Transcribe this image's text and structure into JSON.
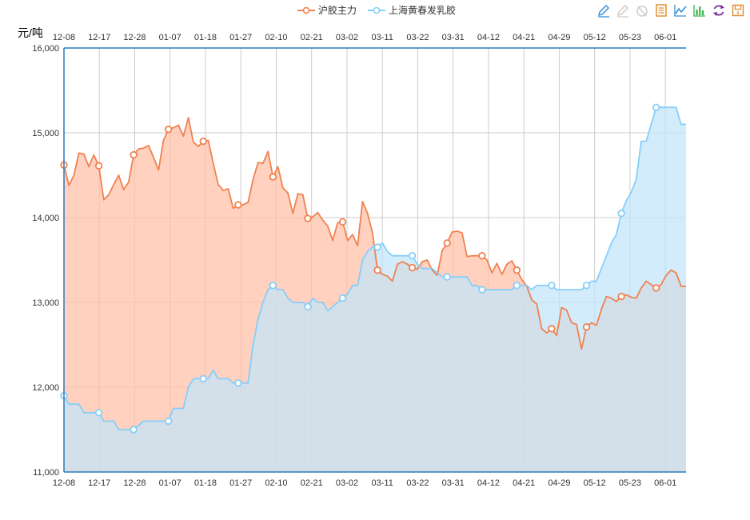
{
  "legend": {
    "items": [
      {
        "name": "沪胶主力",
        "color": "#F08150"
      },
      {
        "name": "上海黄春发乳胶",
        "color": "#87CEFA"
      }
    ]
  },
  "toolbox": {
    "icons": [
      "pen-icon",
      "eraser-icon",
      "clear-icon",
      "data-view-icon",
      "line-chart-icon",
      "bar-chart-icon",
      "refresh-icon",
      "save-icon"
    ]
  },
  "chart_data": {
    "type": "area",
    "ylabel": "元/吨",
    "ylim": [
      11000,
      16000
    ],
    "yticks": [
      "11,000",
      "12,000",
      "13,000",
      "14,000",
      "15,000",
      "16,000"
    ],
    "xtick_labels": [
      "12-08",
      "12-17",
      "12-28",
      "01-07",
      "01-18",
      "01-27",
      "02-10",
      "02-21",
      "03-02",
      "03-11",
      "03-22",
      "03-31",
      "04-12",
      "04-21",
      "04-29",
      "05-12",
      "05-23",
      "06-01"
    ],
    "grid": true,
    "series": [
      {
        "name": "沪胶主力",
        "color": "#F08150",
        "fill": "#FFBFA5",
        "values": [
          14620,
          14380,
          14500,
          14760,
          14750,
          14600,
          14740,
          14610,
          14210,
          14270,
          14390,
          14500,
          14330,
          14420,
          14740,
          14810,
          14820,
          14850,
          14710,
          14560,
          14910,
          15040,
          15060,
          15090,
          14960,
          15180,
          14890,
          14840,
          14900,
          14910,
          14640,
          14390,
          14320,
          14340,
          14110,
          14150,
          14150,
          14180,
          14450,
          14650,
          14640,
          14780,
          14480,
          14600,
          14350,
          14290,
          14050,
          14280,
          14270,
          13990,
          14010,
          14060,
          13970,
          13900,
          13730,
          13940,
          13950,
          13730,
          13800,
          13670,
          14190,
          14050,
          13820,
          13380,
          13330,
          13310,
          13250,
          13450,
          13480,
          13450,
          13410,
          13390,
          13480,
          13500,
          13380,
          13320,
          13610,
          13700,
          13830,
          13840,
          13820,
          13540,
          13550,
          13550,
          13550,
          13500,
          13350,
          13460,
          13330,
          13450,
          13490,
          13380,
          13270,
          13190,
          13030,
          12980,
          12690,
          12640,
          12690,
          12610,
          12940,
          12910,
          12760,
          12740,
          12450,
          12710,
          12760,
          12730,
          12920,
          13070,
          13050,
          13010,
          13070,
          13090,
          13060,
          13050,
          13170,
          13250,
          13210,
          13170,
          13210,
          13320,
          13380,
          13350,
          13190,
          13190
        ]
      },
      {
        "name": "上海黄春发乳胶",
        "color": "#87CEFA",
        "fill": "#C2E5FA",
        "values": [
          11900,
          11800,
          11800,
          11800,
          11700,
          11700,
          11700,
          11700,
          11600,
          11600,
          11600,
          11500,
          11500,
          11500,
          11500,
          11550,
          11600,
          11600,
          11600,
          11600,
          11600,
          11600,
          11750,
          11750,
          11750,
          12000,
          12100,
          12100,
          12100,
          12100,
          12200,
          12100,
          12100,
          12100,
          12050,
          12050,
          12050,
          12050,
          12500,
          12800,
          13000,
          13150,
          13200,
          13150,
          13150,
          13050,
          13000,
          13000,
          13000,
          12950,
          13050,
          13000,
          13000,
          12900,
          12950,
          13000,
          13050,
          13100,
          13200,
          13200,
          13500,
          13600,
          13650,
          13650,
          13700,
          13600,
          13550,
          13550,
          13550,
          13550,
          13550,
          13450,
          13400,
          13400,
          13400,
          13350,
          13300,
          13300,
          13300,
          13300,
          13300,
          13300,
          13200,
          13200,
          13150,
          13150,
          13150,
          13150,
          13150,
          13150,
          13150,
          13200,
          13200,
          13200,
          13150,
          13200,
          13200,
          13200,
          13200,
          13150,
          13150,
          13150,
          13150,
          13150,
          13150,
          13200,
          13250,
          13250,
          13400,
          13550,
          13700,
          13800,
          14050,
          14200,
          14300,
          14450,
          14900,
          14900,
          15100,
          15300,
          15300,
          15300,
          15300,
          15300,
          15100,
          15100
        ]
      }
    ]
  }
}
